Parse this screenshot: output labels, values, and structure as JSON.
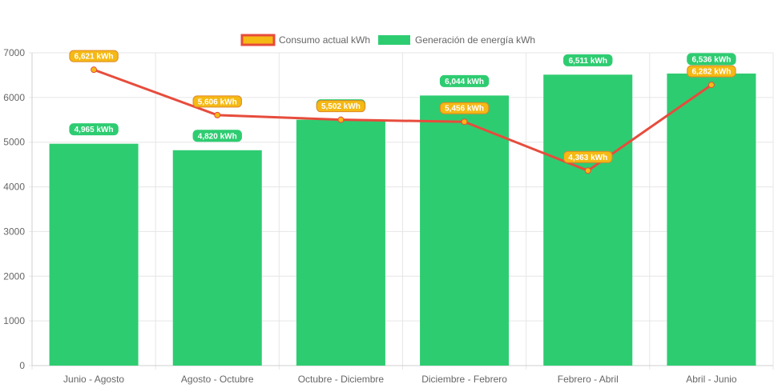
{
  "chart_data": {
    "type": "bar",
    "categories": [
      "Junio - Agosto",
      "Agosto - Octubre",
      "Octubre - Diciembre",
      "Diciembre - Febrero",
      "Febrero - Abril",
      "Abril - Junio"
    ],
    "series": [
      {
        "name": "Consumo actual kWh",
        "type": "line",
        "values": [
          6621,
          5606,
          5502,
          5456,
          4363,
          6282
        ],
        "labels": [
          "6,621 kWh",
          "5,606 kWh",
          "5,502 kWh",
          "5,456 kWh",
          "4,363 kWh",
          "6,282 kWh"
        ],
        "color": "#e74c3c",
        "fill": "#f5b913"
      },
      {
        "name": "Generación de energía kWh",
        "type": "bar",
        "values": [
          4965,
          4820,
          5502,
          6044,
          6511,
          6536
        ],
        "labels": [
          "4,965 kWh",
          "4,820 kWh",
          "5,502 kWh",
          "6,044 kWh",
          "6,511 kWh",
          "6,536 kWh"
        ],
        "color": "#2ecc71"
      }
    ],
    "yticks": [
      "0",
      "1000",
      "2000",
      "3000",
      "4000",
      "5000",
      "6000",
      "7000"
    ],
    "ylim": [
      0,
      7000
    ],
    "grid": true,
    "legend": "top-center"
  }
}
